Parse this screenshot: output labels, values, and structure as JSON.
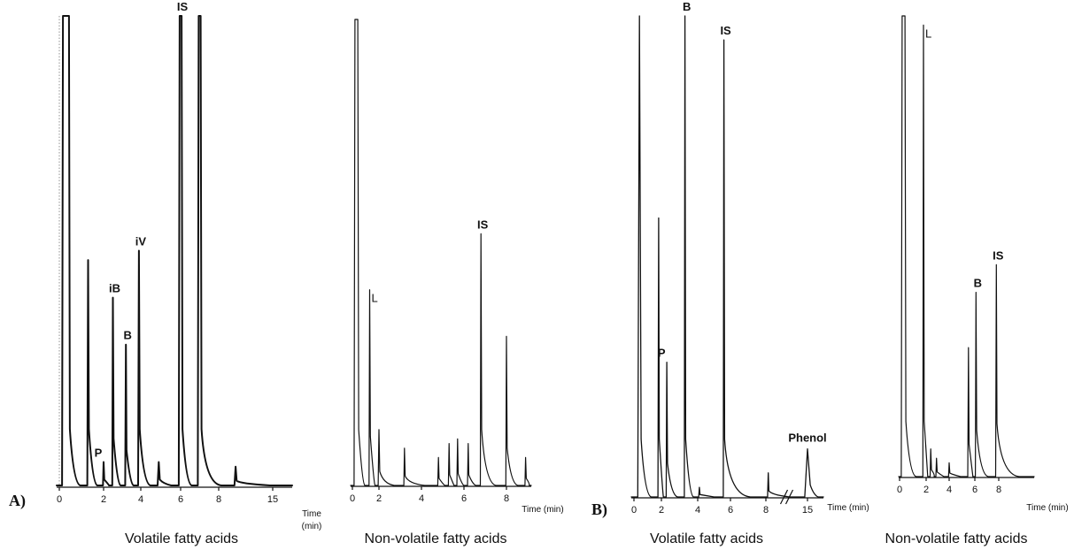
{
  "panels": [
    {
      "letter": "A)"
    },
    {
      "letter": "B)"
    }
  ],
  "chart_data": [
    {
      "type": "line",
      "panel": "A)",
      "caption": "Volatile fatty acids",
      "xticks": [
        "0",
        "2",
        "4",
        "6",
        "8",
        "15"
      ],
      "xlabel": "Time (min)",
      "axis_break": false,
      "peaks": [
        {
          "t": 0.3,
          "h": 1.0,
          "w": 0.35,
          "flat_top": true
        },
        {
          "t": 1.3,
          "h": 0.48,
          "w": 0.07
        },
        {
          "t": 2.0,
          "h": 0.05,
          "w": 0.05,
          "label": "P"
        },
        {
          "t": 2.5,
          "h": 0.4,
          "w": 0.06,
          "label": "iB"
        },
        {
          "t": 3.2,
          "h": 0.3,
          "w": 0.06,
          "label": "B"
        },
        {
          "t": 3.9,
          "h": 0.5,
          "w": 0.07,
          "label": "iV"
        },
        {
          "t": 4.9,
          "h": 0.05,
          "w": 0.1
        },
        {
          "t": 6.0,
          "h": 1.0,
          "w": 0.17,
          "flat_top": true,
          "label": "IS"
        },
        {
          "t": 7.0,
          "h": 1.0,
          "w": 0.17,
          "flat_top": true
        },
        {
          "t": 8.5,
          "h": 0.04,
          "w": 0.1
        }
      ]
    },
    {
      "type": "line",
      "panel": "A)",
      "caption": "Non-volatile fatty acids",
      "xticks": [
        "0",
        "2",
        "4",
        "6",
        "8"
      ],
      "xlabel": "Time (min)",
      "axis_break": false,
      "peaks": [
        {
          "t": 0.3,
          "h": 1.0,
          "w": 0.35,
          "flat_top": true
        },
        {
          "t": 1.3,
          "h": 0.42,
          "w": 0.08,
          "label": "L"
        },
        {
          "t": 2.0,
          "h": 0.12,
          "w": 0.12
        },
        {
          "t": 3.2,
          "h": 0.08,
          "w": 0.08
        },
        {
          "t": 4.8,
          "h": 0.06,
          "w": 0.06
        },
        {
          "t": 5.3,
          "h": 0.09,
          "w": 0.08
        },
        {
          "t": 5.7,
          "h": 0.1,
          "w": 0.06
        },
        {
          "t": 6.2,
          "h": 0.09,
          "w": 0.06
        },
        {
          "t": 6.8,
          "h": 0.54,
          "w": 0.06,
          "label": "IS"
        },
        {
          "t": 8.0,
          "h": 0.32,
          "w": 0.1
        },
        {
          "t": 8.9,
          "h": 0.06,
          "w": 0.08
        }
      ]
    },
    {
      "type": "line",
      "panel": "B)",
      "caption": "Volatile fatty acids",
      "xticks": [
        "0",
        "2",
        "4",
        "6",
        "8",
        "15"
      ],
      "xlabel": "Time (min)",
      "axis_break": true,
      "peaks": [
        {
          "t": 0.4,
          "h": 1.0,
          "w": 0.25
        },
        {
          "t": 1.8,
          "h": 0.58,
          "w": 0.08
        },
        {
          "t": 2.3,
          "h": 0.28,
          "w": 0.06,
          "label": "P"
        },
        {
          "t": 3.3,
          "h": 1.0,
          "w": 0.08,
          "label": "B"
        },
        {
          "t": 4.1,
          "h": 0.02,
          "w": 0.1
        },
        {
          "t": 5.6,
          "h": 0.95,
          "w": 0.08,
          "label": "IS"
        },
        {
          "t": 8.4,
          "h": 0.05,
          "w": 0.06
        },
        {
          "t": 15.0,
          "h": 0.1,
          "w": 0.4,
          "label": "Phenol"
        }
      ]
    },
    {
      "type": "line",
      "panel": "B)",
      "caption": "Non-volatile fatty acids",
      "xticks": [
        "0",
        "2",
        "4",
        "6",
        "8"
      ],
      "xlabel": "Time (min)",
      "axis_break": false,
      "peaks": [
        {
          "t": 0.3,
          "h": 1.0,
          "w": 0.35,
          "flat_top": true
        },
        {
          "t": 1.8,
          "h": 0.98,
          "w": 0.08,
          "label": "L"
        },
        {
          "t": 2.4,
          "h": 0.06,
          "w": 0.05
        },
        {
          "t": 2.9,
          "h": 0.04,
          "w": 0.05
        },
        {
          "t": 4.0,
          "h": 0.03,
          "w": 0.06
        },
        {
          "t": 5.5,
          "h": 0.28,
          "w": 0.05
        },
        {
          "t": 6.1,
          "h": 0.4,
          "w": 0.06,
          "label": "B"
        },
        {
          "t": 7.8,
          "h": 0.46,
          "w": 0.06,
          "label": "IS"
        }
      ]
    }
  ]
}
